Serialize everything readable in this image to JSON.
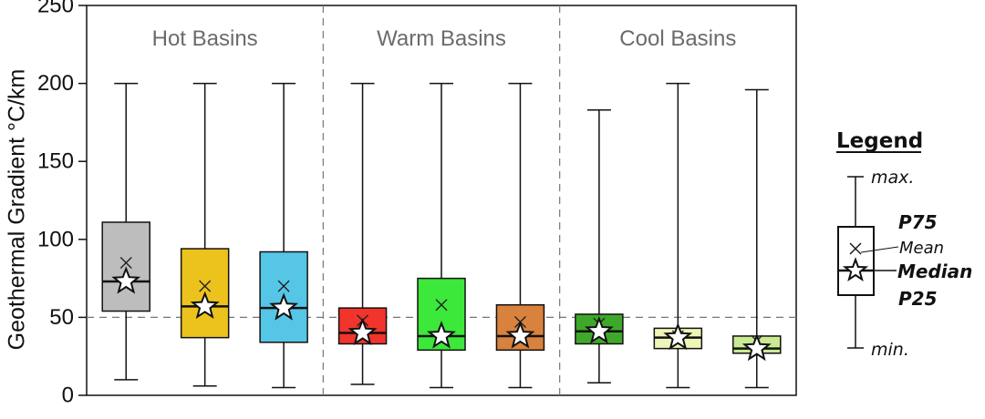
{
  "chart_data": {
    "type": "boxplot",
    "ylabel": "Geothermal Gradient °C/km",
    "ylim": [
      0,
      250
    ],
    "yticks": [
      "0",
      "50",
      "100",
      "150",
      "200",
      "250"
    ],
    "reference_line": 50,
    "groups": [
      {
        "name": "Hot Basins",
        "boxes": [
          0,
          1,
          2
        ]
      },
      {
        "name": "Warm Basins",
        "boxes": [
          3,
          4,
          5
        ]
      },
      {
        "name": "Cool Basins",
        "boxes": [
          6,
          7,
          8
        ]
      }
    ],
    "boxes": [
      {
        "color": "#bdbdbd",
        "min": 10,
        "p25": 54,
        "median": 73,
        "mean": 85,
        "p75": 111,
        "max": 200
      },
      {
        "color": "#ecc21c",
        "min": 6,
        "p25": 37,
        "median": 57,
        "mean": 70,
        "p75": 94,
        "max": 200
      },
      {
        "color": "#56c6e6",
        "min": 5,
        "p25": 34,
        "median": 56,
        "mean": 70,
        "p75": 92,
        "max": 200
      },
      {
        "color": "#f1342c",
        "min": 7,
        "p25": 33,
        "median": 40,
        "mean": 48,
        "p75": 56,
        "max": 200
      },
      {
        "color": "#3ce83a",
        "min": 5,
        "p25": 29,
        "median": 38,
        "mean": 58,
        "p75": 75,
        "max": 200
      },
      {
        "color": "#d8823e",
        "min": 5,
        "p25": 29,
        "median": 38,
        "mean": 47,
        "p75": 58,
        "max": 200
      },
      {
        "color": "#3ea82b",
        "min": 8,
        "p25": 33,
        "median": 41,
        "mean": 46,
        "p75": 52,
        "max": 183
      },
      {
        "color": "#eef5b6",
        "min": 5,
        "p25": 30,
        "median": 37,
        "mean": 38,
        "p75": 43,
        "max": 200
      },
      {
        "color": "#c9ea92",
        "min": 5,
        "p25": 27,
        "median": 30,
        "mean": 35,
        "p75": 38,
        "max": 196
      }
    ],
    "legend": {
      "title": "Legend",
      "max_label": "max.",
      "p75_label": "P75",
      "mean_label": "Mean",
      "median_label": "Median",
      "p25_label": "P25",
      "min_label": "min."
    }
  }
}
